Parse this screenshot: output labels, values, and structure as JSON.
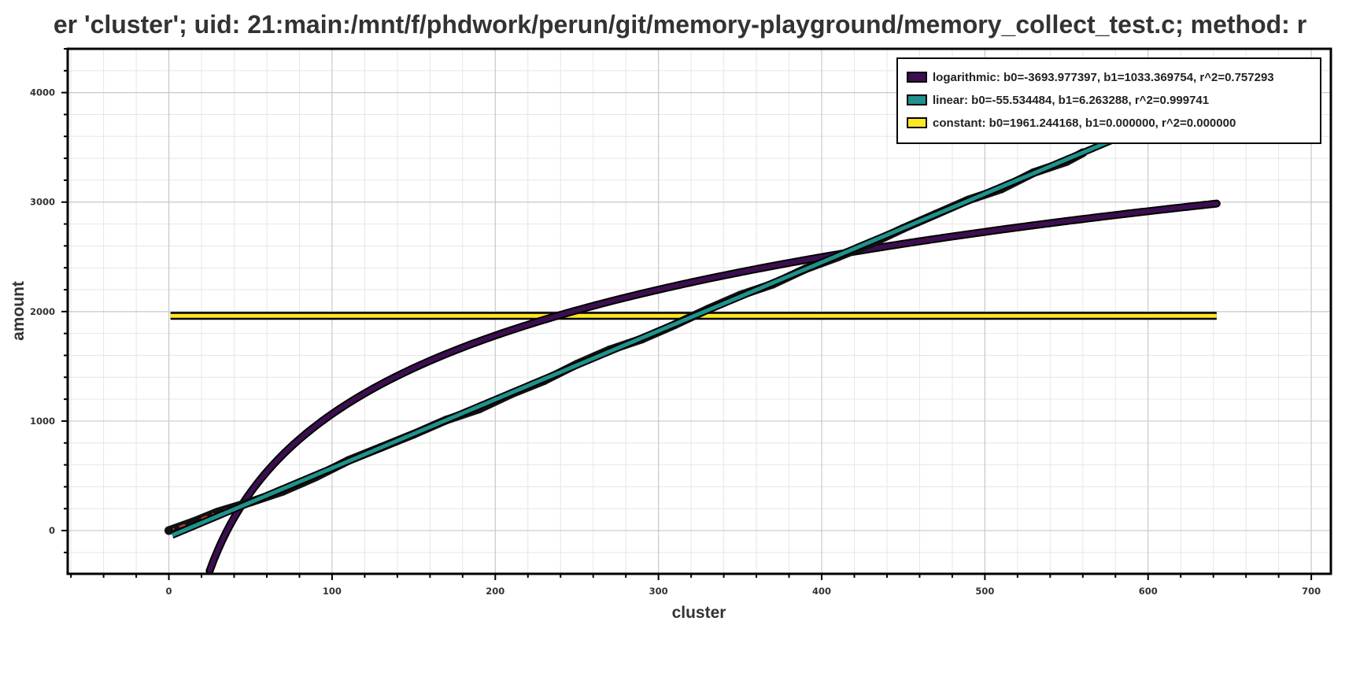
{
  "chart_data": {
    "type": "line",
    "title": "er 'cluster'; uid: 21:main:/mnt/f/phdwork/perun/git/memory-playground/memory_collect_test.c; method: r",
    "xlabel": "cluster",
    "ylabel": "amount",
    "xlim": [
      -62,
      712
    ],
    "ylim": [
      -395,
      4400
    ],
    "x_ticks": [
      "0",
      "100",
      "200",
      "300",
      "400",
      "500",
      "600",
      "700"
    ],
    "y_ticks": [
      "0",
      "1000",
      "2000",
      "3000",
      "4000"
    ],
    "x_tick_values": [
      0,
      100,
      200,
      300,
      400,
      500,
      600,
      700
    ],
    "y_tick_values": [
      0,
      1000,
      2000,
      3000,
      4000
    ],
    "grid": true,
    "legend_position": "top-right",
    "series": [
      {
        "name": "logarithmic: b0=-3693.977397, b1=1033.369754, r^2=0.757293",
        "model": "log",
        "b0": -3693.977397,
        "b1": 1033.369754,
        "x_range": [
          25,
          642
        ],
        "color": "#3b0f4f"
      },
      {
        "name": "linear: b0=-55.534484, b1=6.263288, r^2=0.999741",
        "model": "linear",
        "b0": -55.534484,
        "b1": 6.263288,
        "x_range": [
          2,
          642
        ],
        "color": "#21918c"
      },
      {
        "name": "constant: b0=1961.244168, b1=0.000000, r^2=0.000000",
        "model": "constant",
        "b0": 1961.244168,
        "b1": 0,
        "x_range": [
          1,
          642
        ],
        "color": "#fde725"
      }
    ],
    "measured": {
      "x_range": [
        0,
        560
      ],
      "points": [
        [
          0,
          0
        ],
        [
          15,
          80
        ],
        [
          30,
          170
        ],
        [
          50,
          260
        ],
        [
          70,
          360
        ],
        [
          90,
          490
        ],
        [
          110,
          640
        ],
        [
          130,
          760
        ],
        [
          150,
          880
        ],
        [
          170,
          1010
        ],
        [
          190,
          1110
        ],
        [
          210,
          1250
        ],
        [
          230,
          1370
        ],
        [
          250,
          1520
        ],
        [
          270,
          1650
        ],
        [
          290,
          1750
        ],
        [
          310,
          1880
        ],
        [
          330,
          2020
        ],
        [
          350,
          2150
        ],
        [
          370,
          2250
        ],
        [
          390,
          2390
        ],
        [
          410,
          2500
        ],
        [
          430,
          2620
        ],
        [
          450,
          2760
        ],
        [
          470,
          2890
        ],
        [
          490,
          3020
        ],
        [
          510,
          3120
        ],
        [
          530,
          3270
        ],
        [
          550,
          3370
        ],
        [
          560,
          3450
        ]
      ],
      "color": "#111111",
      "fit_dash_color": "#c0392b"
    }
  }
}
